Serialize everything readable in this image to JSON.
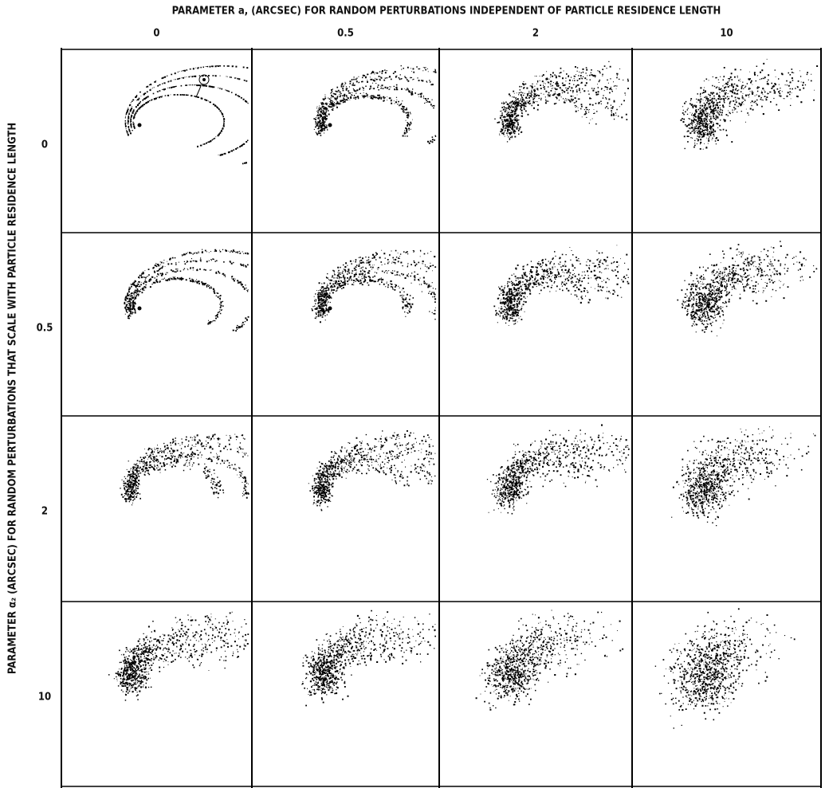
{
  "figure": {
    "top_title": "PARAMETER a, (ARCSEC) FOR RANDOM PERTURBATIONS INDEPENDENT OF PARTICLE RESIDENCE LENGTH",
    "column_labels": [
      "0",
      "0.5",
      "2",
      "10"
    ],
    "side_title": "PARAMETER α₂ (ARCSEC) FOR RANDOM PERTURBATIONS THAT SCALE WITH PARTICLE RESIDENCE LENGTH",
    "row_labels": [
      "0",
      "0.5",
      "2",
      "10"
    ]
  }
}
